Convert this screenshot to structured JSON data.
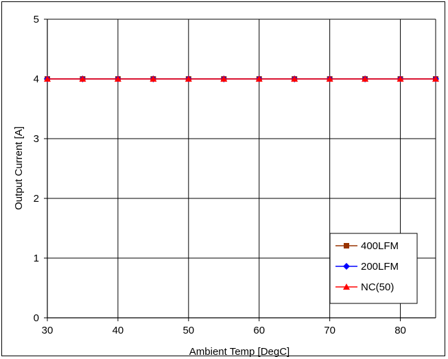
{
  "chart_data": {
    "type": "line",
    "title": "",
    "xlabel": "Ambient Temp [DegC]",
    "ylabel": "Output Current [A]",
    "xlim": [
      30,
      85
    ],
    "ylim": [
      0,
      5
    ],
    "xticks": [
      30,
      40,
      50,
      60,
      70,
      80
    ],
    "yticks": [
      0,
      1,
      2,
      3,
      4,
      5
    ],
    "grid": true,
    "legend_position": "bottom-right",
    "x": [
      30,
      35,
      40,
      45,
      50,
      55,
      60,
      65,
      70,
      75,
      80,
      85
    ],
    "series": [
      {
        "name": "400LFM",
        "color": "#993300",
        "marker": "square",
        "values": [
          4,
          4,
          4,
          4,
          4,
          4,
          4,
          4,
          4,
          4,
          4,
          4
        ]
      },
      {
        "name": "200LFM",
        "color": "#0000ff",
        "marker": "diamond",
        "values": [
          4,
          4,
          4,
          4,
          4,
          4,
          4,
          4,
          4,
          4,
          4,
          4
        ]
      },
      {
        "name": "NC(50)",
        "color": "#ff0000",
        "marker": "triangle",
        "values": [
          4,
          4,
          4,
          4,
          4,
          4,
          4,
          4,
          4,
          4,
          4,
          4
        ]
      }
    ]
  }
}
